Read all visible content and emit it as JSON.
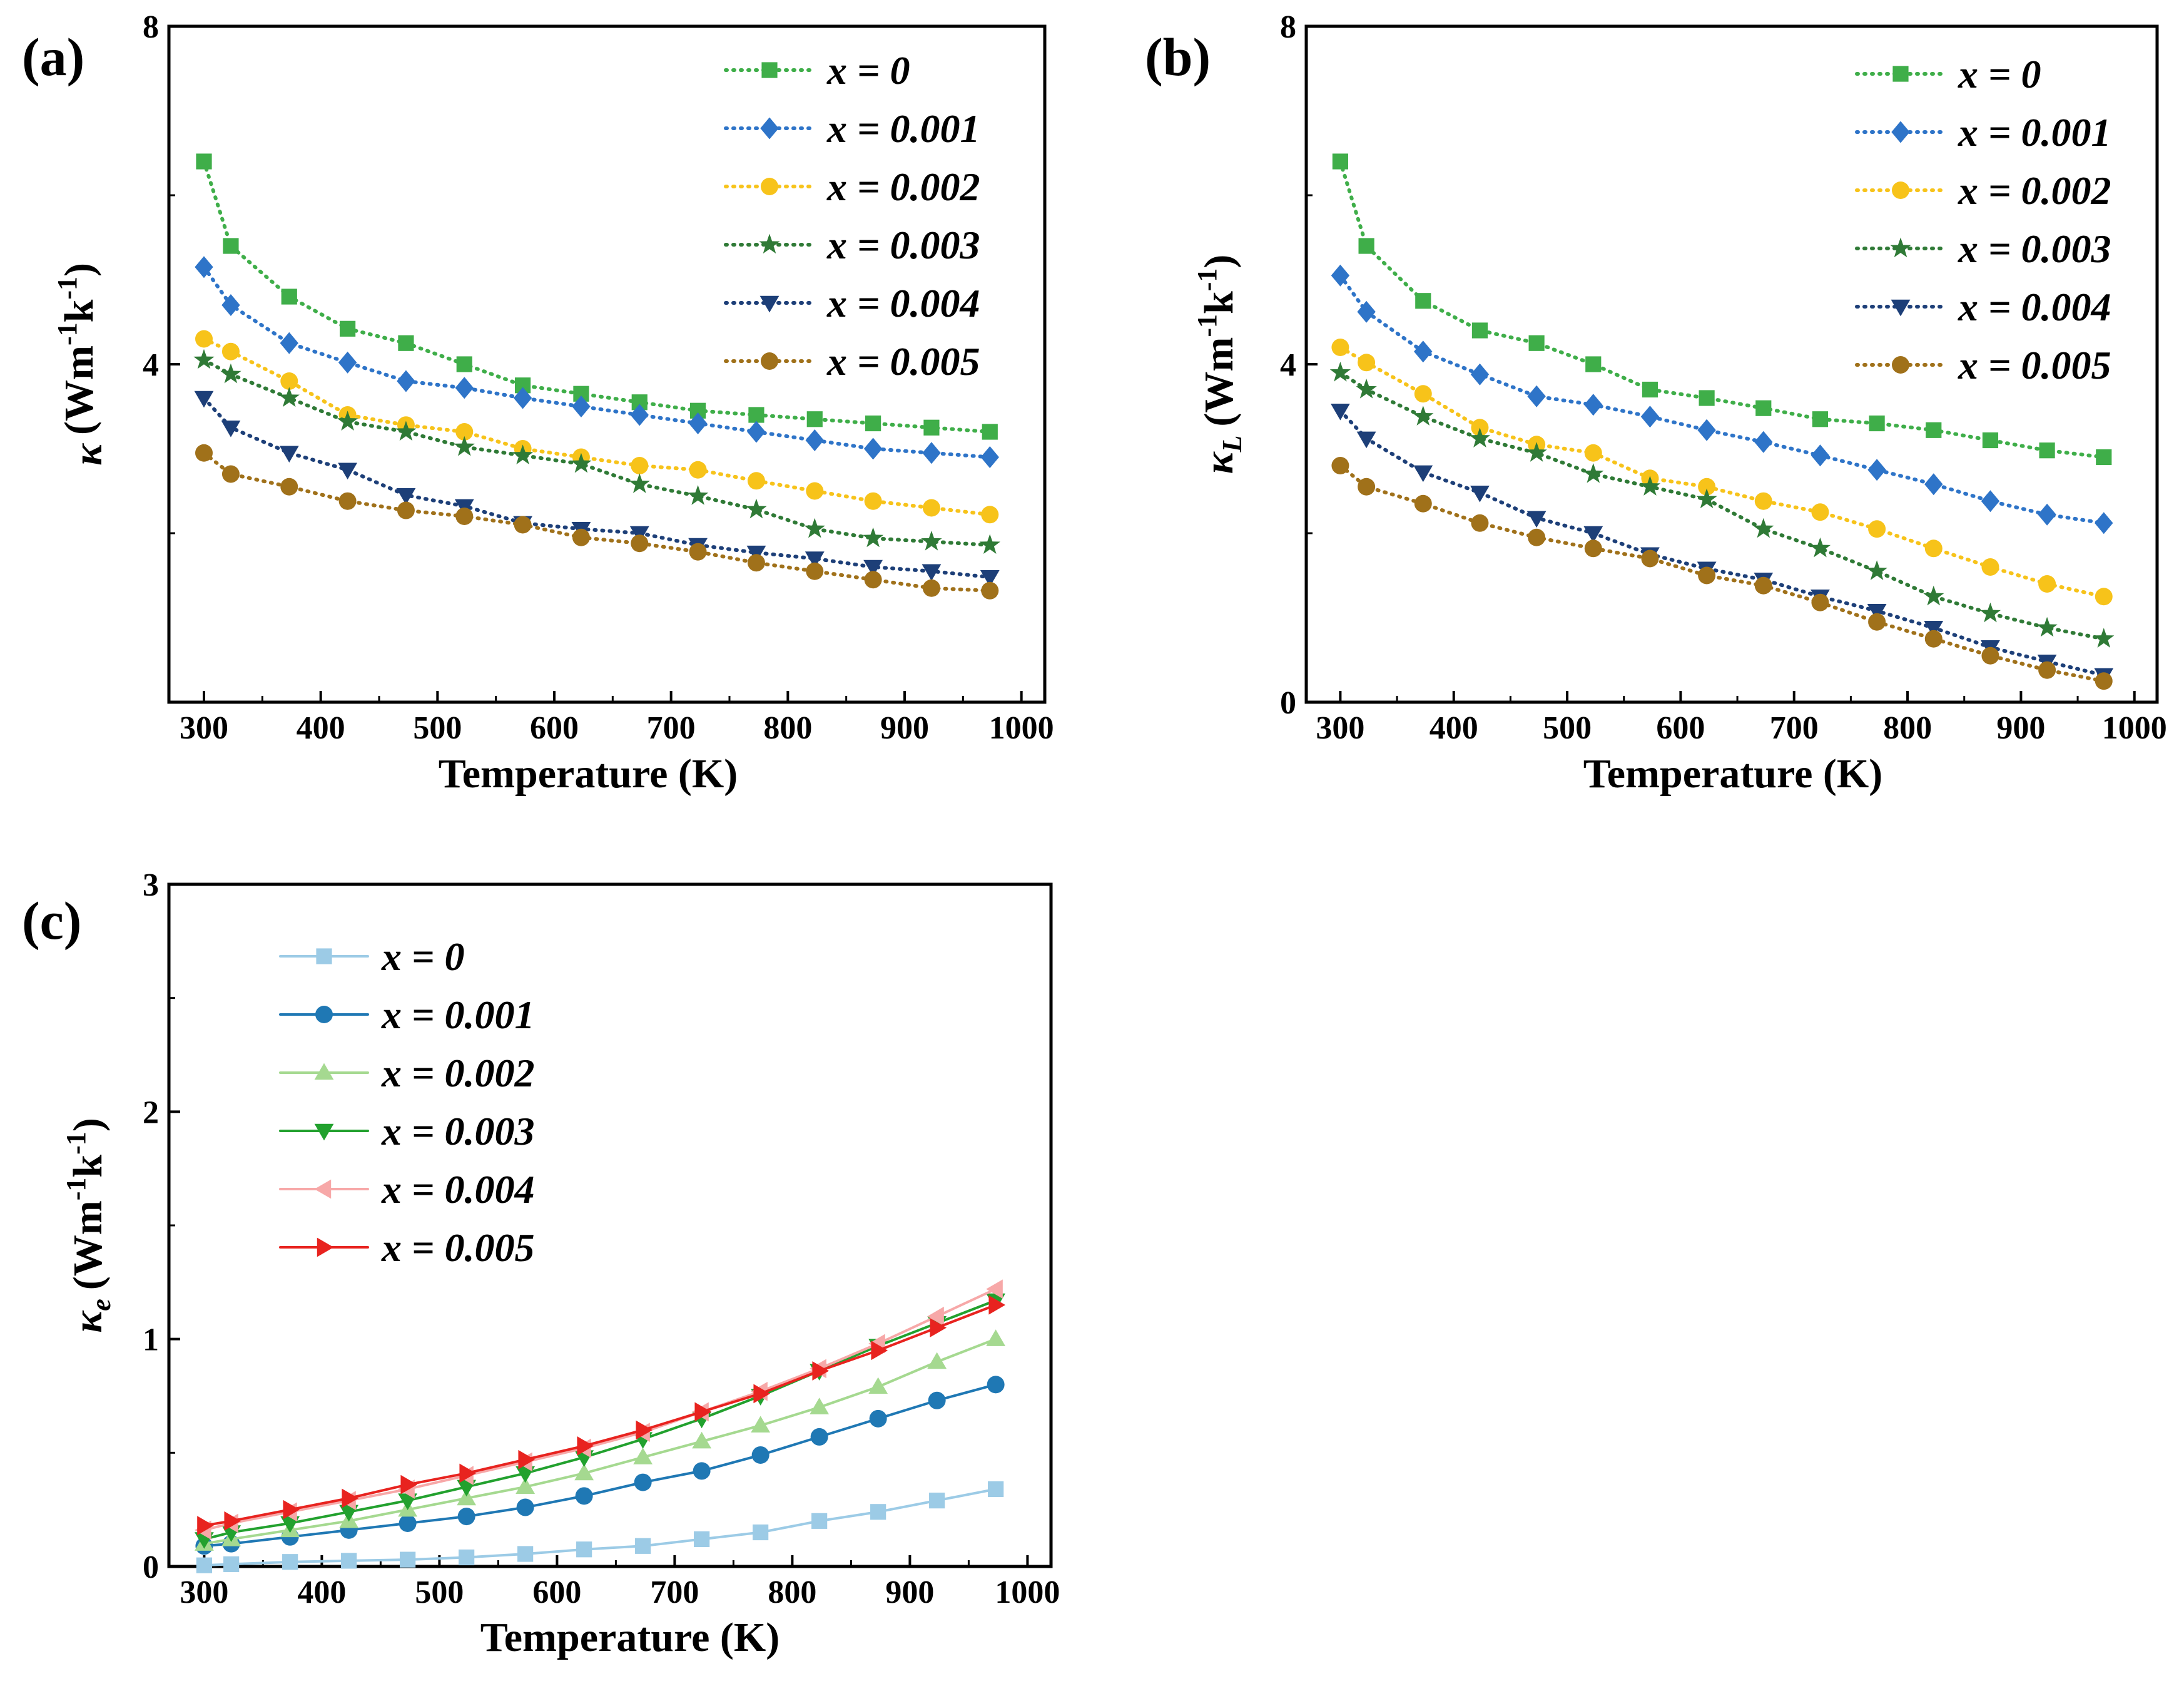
{
  "chart_data": [
    {
      "id": "a",
      "type": "line",
      "panel_label": "(a)",
      "xlabel": "Temperature (K)",
      "ylabel": "κ (Wm-1k-1)",
      "ylabel_parts": {
        "symbol": "κ",
        "subscript": "",
        "units_base": "(Wm",
        "exp1": "-1",
        "units_mid": "k",
        "exp2": "-1",
        "units_end": ")"
      },
      "xlim": [
        270,
        1020
      ],
      "ylim": [
        0,
        8
      ],
      "xticks": [
        300,
        400,
        500,
        600,
        700,
        800,
        900,
        1000
      ],
      "yticks": [
        4,
        8
      ],
      "line_style": "dotted",
      "legend_position": "top-right",
      "x": [
        300,
        323,
        373,
        423,
        473,
        523,
        573,
        623,
        673,
        723,
        773,
        823,
        873,
        923,
        973
      ],
      "series": [
        {
          "name": "x = 0",
          "marker": "square",
          "color": "#3fae49",
          "values": [
            6.4,
            5.4,
            4.8,
            4.42,
            4.25,
            4.0,
            3.75,
            3.65,
            3.55,
            3.45,
            3.4,
            3.35,
            3.3,
            3.25,
            3.2
          ]
        },
        {
          "name": "x = 0.001",
          "marker": "diamond",
          "color": "#2e74c8",
          "values": [
            5.15,
            4.7,
            4.25,
            4.02,
            3.8,
            3.72,
            3.6,
            3.5,
            3.4,
            3.3,
            3.2,
            3.1,
            3.0,
            2.95,
            2.9
          ]
        },
        {
          "name": "x = 0.002",
          "marker": "circle",
          "color": "#f7c31a",
          "values": [
            4.3,
            4.15,
            3.8,
            3.4,
            3.28,
            3.2,
            3.0,
            2.9,
            2.8,
            2.75,
            2.62,
            2.5,
            2.38,
            2.3,
            2.22
          ]
        },
        {
          "name": "x = 0.003",
          "marker": "star",
          "color": "#2f7a36",
          "values": [
            4.05,
            3.88,
            3.6,
            3.32,
            3.2,
            3.02,
            2.92,
            2.82,
            2.58,
            2.44,
            2.28,
            2.05,
            1.94,
            1.9,
            1.86
          ]
        },
        {
          "name": "x = 0.004",
          "marker": "triangle-down",
          "color": "#1d3f78",
          "values": [
            3.6,
            3.25,
            2.95,
            2.75,
            2.45,
            2.32,
            2.12,
            2.05,
            2.0,
            1.86,
            1.77,
            1.7,
            1.6,
            1.55,
            1.48
          ]
        },
        {
          "name": "x = 0.005",
          "marker": "circle",
          "color": "#a0711a",
          "values": [
            2.95,
            2.7,
            2.55,
            2.38,
            2.27,
            2.2,
            2.1,
            1.95,
            1.88,
            1.78,
            1.65,
            1.55,
            1.45,
            1.35,
            1.32
          ]
        }
      ]
    },
    {
      "id": "b",
      "type": "line",
      "panel_label": "(b)",
      "xlabel": "Temperature (K)",
      "ylabel": "κL (Wm-1k-1)",
      "ylabel_parts": {
        "symbol": "κ",
        "subscript": "L",
        "units_base": "(Wm",
        "exp1": "-1",
        "units_mid": "k",
        "exp2": "-1",
        "units_end": ")"
      },
      "xlim": [
        270,
        1020
      ],
      "ylim": [
        0,
        8
      ],
      "xticks": [
        300,
        400,
        500,
        600,
        700,
        800,
        900,
        1000
      ],
      "yticks": [
        0,
        4,
        8
      ],
      "line_style": "dotted",
      "legend_position": "top-right",
      "x": [
        300,
        323,
        373,
        423,
        473,
        523,
        573,
        623,
        673,
        723,
        773,
        823,
        873,
        923,
        973
      ],
      "series": [
        {
          "name": "x = 0",
          "marker": "square",
          "color": "#3fae49",
          "values": [
            6.4,
            5.4,
            4.75,
            4.4,
            4.25,
            4.0,
            3.7,
            3.6,
            3.48,
            3.35,
            3.3,
            3.22,
            3.1,
            2.98,
            2.9
          ]
        },
        {
          "name": "x = 0.001",
          "marker": "diamond",
          "color": "#2e74c8",
          "values": [
            5.05,
            4.62,
            4.15,
            3.88,
            3.62,
            3.52,
            3.38,
            3.22,
            3.08,
            2.92,
            2.75,
            2.58,
            2.38,
            2.22,
            2.12
          ]
        },
        {
          "name": "x = 0.002",
          "marker": "circle",
          "color": "#f7c31a",
          "values": [
            4.2,
            4.02,
            3.65,
            3.25,
            3.05,
            2.95,
            2.65,
            2.55,
            2.38,
            2.25,
            2.05,
            1.82,
            1.6,
            1.4,
            1.25
          ]
        },
        {
          "name": "x = 0.003",
          "marker": "star",
          "color": "#2f7a36",
          "values": [
            3.9,
            3.7,
            3.38,
            3.12,
            2.95,
            2.7,
            2.55,
            2.4,
            2.05,
            1.82,
            1.55,
            1.25,
            1.05,
            0.88,
            0.75
          ]
        },
        {
          "name": "x = 0.004",
          "marker": "triangle-down",
          "color": "#1d3f78",
          "values": [
            3.45,
            3.12,
            2.72,
            2.48,
            2.18,
            2.0,
            1.75,
            1.58,
            1.45,
            1.25,
            1.08,
            0.88,
            0.65,
            0.48,
            0.32
          ]
        },
        {
          "name": "x = 0.005",
          "marker": "circle",
          "color": "#a0711a",
          "values": [
            2.8,
            2.55,
            2.35,
            2.12,
            1.95,
            1.82,
            1.7,
            1.5,
            1.38,
            1.18,
            0.95,
            0.75,
            0.55,
            0.38,
            0.25
          ]
        }
      ]
    },
    {
      "id": "c",
      "type": "line",
      "panel_label": "(c)",
      "xlabel": "Temperature (K)",
      "ylabel": "κe (Wm-1k-1)",
      "ylabel_parts": {
        "symbol": "κ",
        "subscript": "e",
        "units_base": "(Wm",
        "exp1": "-1",
        "units_mid": "k",
        "exp2": "-1",
        "units_end": ")"
      },
      "xlim": [
        270,
        1020
      ],
      "ylim": [
        0,
        3
      ],
      "xticks": [
        300,
        400,
        500,
        600,
        700,
        800,
        900,
        1000
      ],
      "yticks": [
        0,
        1,
        2,
        3
      ],
      "line_style": "solid",
      "legend_position": "top-left",
      "x": [
        300,
        323,
        373,
        423,
        473,
        523,
        573,
        623,
        673,
        723,
        773,
        823,
        873,
        923,
        973
      ],
      "series": [
        {
          "name": "x = 0",
          "marker": "square",
          "color": "#9ccbe6",
          "values": [
            0.005,
            0.01,
            0.02,
            0.025,
            0.03,
            0.04,
            0.055,
            0.075,
            0.09,
            0.12,
            0.15,
            0.2,
            0.24,
            0.29,
            0.34
          ]
        },
        {
          "name": "x = 0.001",
          "marker": "circle",
          "color": "#1f78b4",
          "values": [
            0.09,
            0.1,
            0.13,
            0.16,
            0.19,
            0.22,
            0.26,
            0.31,
            0.37,
            0.42,
            0.49,
            0.57,
            0.65,
            0.73,
            0.8
          ]
        },
        {
          "name": "x = 0.002",
          "marker": "triangle-up",
          "color": "#a5d990",
          "values": [
            0.1,
            0.12,
            0.16,
            0.2,
            0.25,
            0.3,
            0.35,
            0.41,
            0.48,
            0.55,
            0.62,
            0.7,
            0.79,
            0.9,
            1.0
          ]
        },
        {
          "name": "x = 0.003",
          "marker": "triangle-down",
          "color": "#22a12e",
          "values": [
            0.12,
            0.15,
            0.19,
            0.24,
            0.29,
            0.35,
            0.41,
            0.48,
            0.56,
            0.65,
            0.75,
            0.86,
            0.97,
            1.07,
            1.17
          ]
        },
        {
          "name": "x = 0.004",
          "marker": "triangle-left",
          "color": "#f7a8a8",
          "values": [
            0.16,
            0.19,
            0.24,
            0.29,
            0.34,
            0.4,
            0.46,
            0.52,
            0.59,
            0.68,
            0.77,
            0.87,
            0.98,
            1.1,
            1.22
          ]
        },
        {
          "name": "x = 0.005",
          "marker": "triangle-right",
          "color": "#e8231f",
          "values": [
            0.18,
            0.2,
            0.25,
            0.3,
            0.36,
            0.41,
            0.47,
            0.53,
            0.6,
            0.68,
            0.76,
            0.86,
            0.95,
            1.05,
            1.15
          ]
        }
      ]
    }
  ]
}
